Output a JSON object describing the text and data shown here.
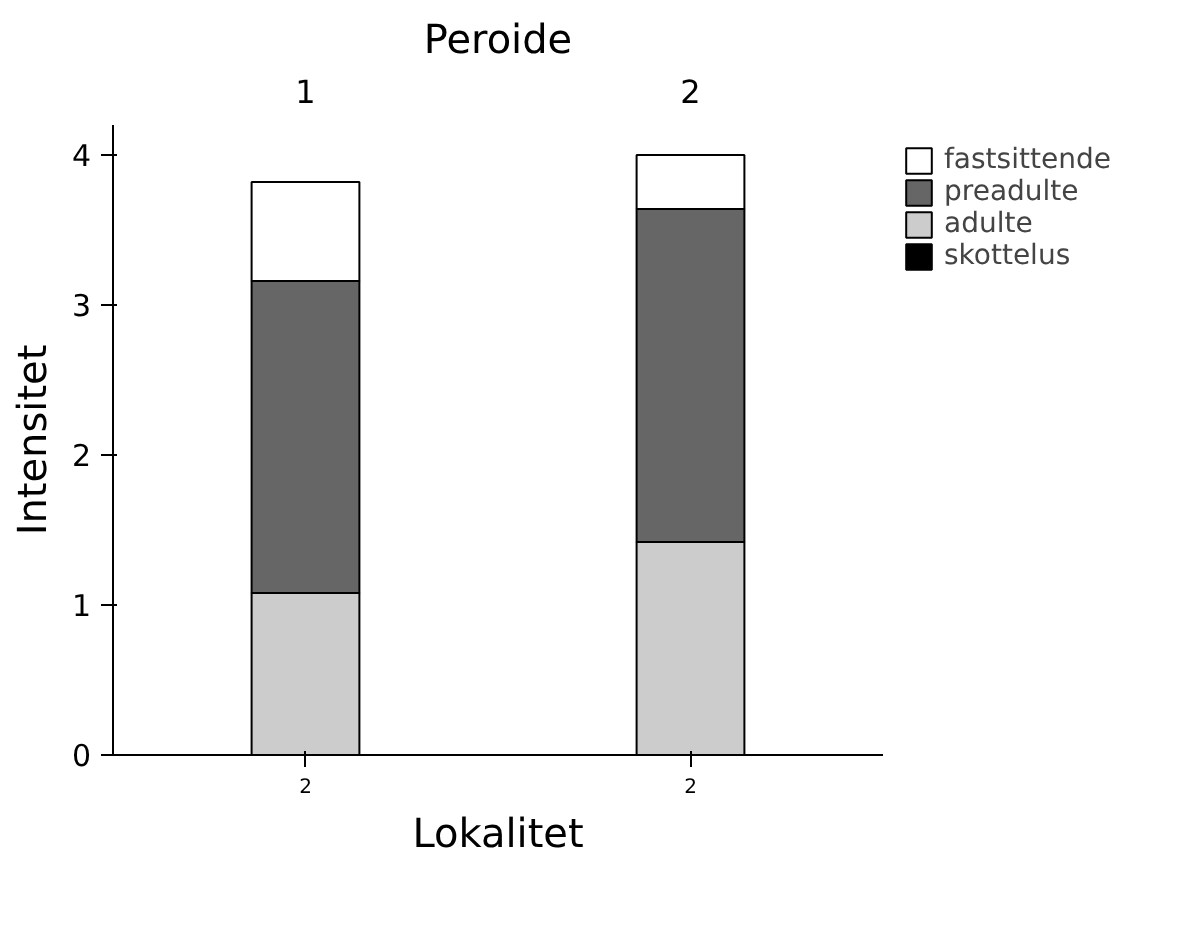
{
  "chart_data": {
    "type": "bar",
    "title": "Peroide",
    "xlabel": "Lokalitet",
    "ylabel": "Intensitet",
    "annotations": [
      "1",
      "2"
    ],
    "categories": [
      "2",
      "2"
    ],
    "stacked": true,
    "ylim": [
      0,
      4.2
    ],
    "yticks": [
      0,
      1,
      2,
      3,
      4
    ],
    "grid": false,
    "legend": "right",
    "series": [
      {
        "name": "skottelus",
        "color": "#000000",
        "values": [
          0,
          0
        ]
      },
      {
        "name": "adulte",
        "color": "#cccccc",
        "values": [
          1.08,
          1.42
        ]
      },
      {
        "name": "preadulte",
        "color": "#666666",
        "values": [
          2.08,
          2.22
        ]
      },
      {
        "name": "fastsittende",
        "color": "#ffffff",
        "values": [
          0.66,
          0.36
        ]
      }
    ]
  }
}
